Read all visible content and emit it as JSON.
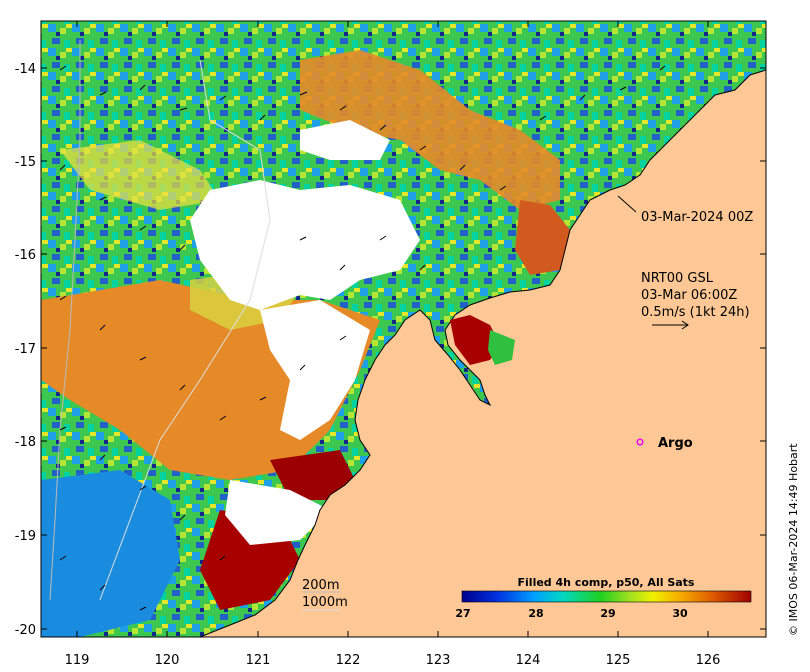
{
  "axes": {
    "x_ticks": [
      "119",
      "120",
      "121",
      "122",
      "123",
      "124",
      "125",
      "126"
    ],
    "y_ticks": [
      "-14",
      "-15",
      "-16",
      "-17",
      "-18",
      "-19",
      "-20"
    ]
  },
  "annotations": {
    "date_label": "03-Mar-2024 00Z",
    "current_title": "NRT00 GSL",
    "current_time": "03-Mar 06:00Z",
    "current_scale": "0.5m/s (1kt 24h)",
    "argo_label": "Argo",
    "isobath_200": "200m",
    "isobath_1000": "1000m",
    "credit": "© IMOS 06-Mar-2024 14:49 Hobart"
  },
  "colorbar": {
    "title": "Filled 4h comp, p50, All Sats",
    "ticks": [
      "27",
      "28",
      "29",
      "30"
    ]
  },
  "colors": {
    "land": "#fdc896",
    "argo": "#ff00ff"
  }
}
